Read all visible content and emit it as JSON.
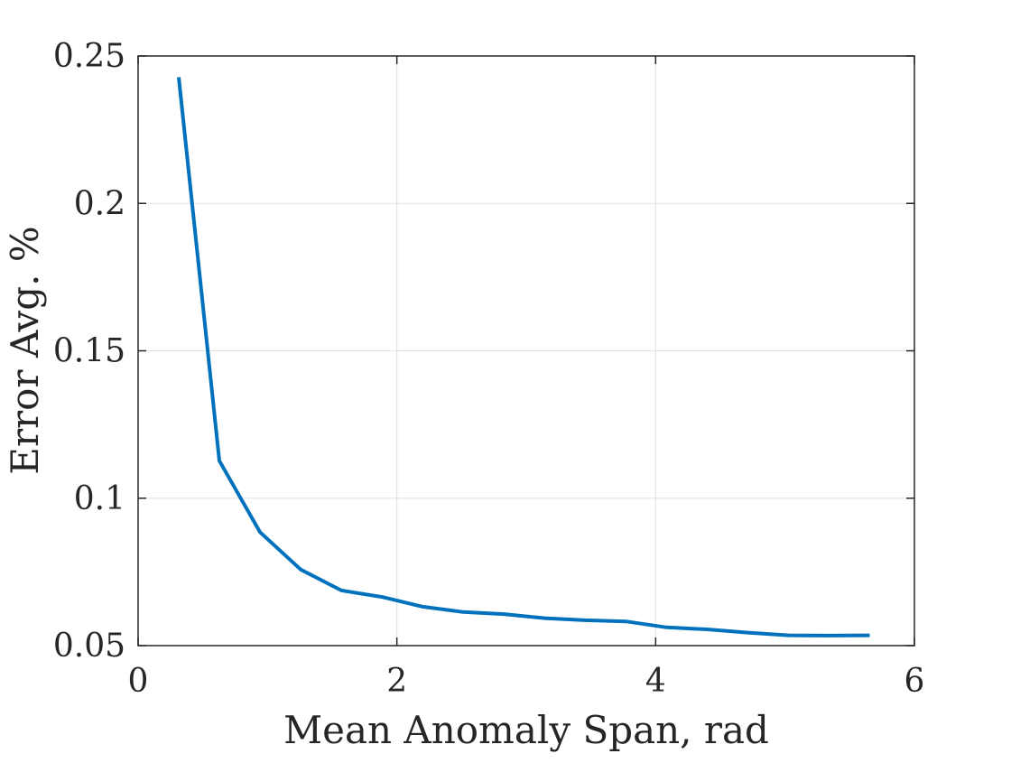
{
  "chart_data": {
    "type": "line",
    "title": "",
    "xlabel": "Mean Anomaly Span, rad",
    "ylabel": "Error Avg. %",
    "xlim": [
      0,
      6
    ],
    "ylim": [
      0.05,
      0.25
    ],
    "xticks": [
      0,
      2,
      4,
      6
    ],
    "xtick_labels": [
      "0",
      "2",
      "4",
      "6"
    ],
    "yticks": [
      0.05,
      0.1,
      0.15,
      0.2,
      0.25
    ],
    "ytick_labels": [
      "0.05",
      "0.1",
      "0.15",
      "0.2",
      "0.25"
    ],
    "grid": true,
    "legend": "none",
    "colors": {
      "line": "#0072BD",
      "axis": "#262626",
      "grid": "#e1e1e1"
    },
    "series": [
      {
        "x": [
          0.314,
          0.628,
          0.942,
          1.257,
          1.571,
          1.885,
          2.199,
          2.513,
          2.827,
          3.142,
          3.456,
          3.77,
          4.084,
          4.398,
          4.712,
          5.027,
          5.341,
          5.655
        ],
        "y": [
          0.2428,
          0.1127,
          0.0885,
          0.0758,
          0.0687,
          0.0665,
          0.0632,
          0.0614,
          0.0607,
          0.0593,
          0.0586,
          0.0582,
          0.0562,
          0.0555,
          0.0544,
          0.0535,
          0.0534,
          0.0535
        ]
      }
    ]
  }
}
